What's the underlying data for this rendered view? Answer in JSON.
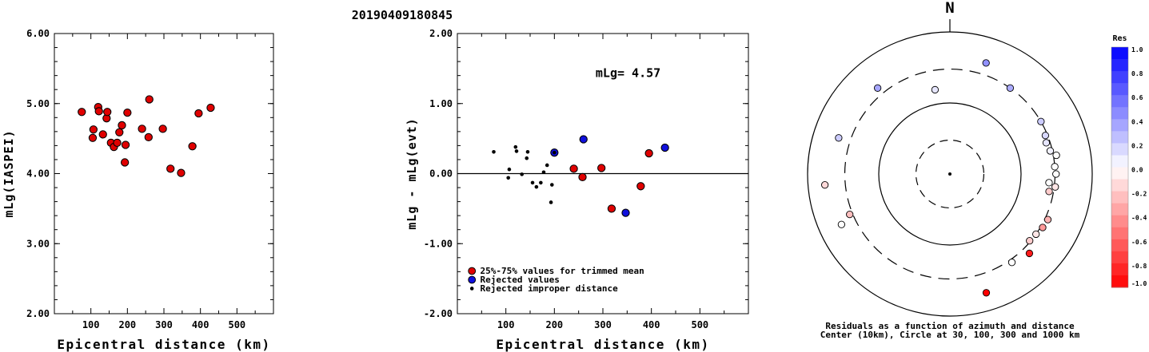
{
  "title": "20190409180845",
  "chart_data": [
    {
      "type": "scatter",
      "xlabel": "Epicentral distance (km)",
      "ylabel": "mLg(IASPEI)",
      "xlim": [
        0,
        600
      ],
      "ylim": [
        2.0,
        6.0
      ],
      "xticks": [
        "100",
        "200",
        "300",
        "400",
        "500"
      ],
      "yticks": [
        "2.00",
        "3.00",
        "4.00",
        "5.00",
        "6.00"
      ],
      "series": [
        {
          "color": "#e00000",
          "points": [
            [
              75,
              4.88
            ],
            [
              105,
              4.51
            ],
            [
              107,
              4.63
            ],
            [
              120,
              4.95
            ],
            [
              122,
              4.89
            ],
            [
              133,
              4.56
            ],
            [
              143,
              4.79
            ],
            [
              145,
              4.88
            ],
            [
              155,
              4.44
            ],
            [
              163,
              4.38
            ],
            [
              172,
              4.44
            ],
            [
              178,
              4.59
            ],
            [
              185,
              4.69
            ],
            [
              193,
              4.16
            ],
            [
              195,
              4.41
            ],
            [
              200,
              4.87
            ],
            [
              240,
              4.64
            ],
            [
              258,
              4.52
            ],
            [
              260,
              5.06
            ],
            [
              297,
              4.64
            ],
            [
              318,
              4.07
            ],
            [
              347,
              4.01
            ],
            [
              378,
              4.39
            ],
            [
              395,
              4.86
            ],
            [
              428,
              4.94
            ]
          ]
        }
      ]
    },
    {
      "type": "scatter",
      "annotation": "mLg= 4.57",
      "xlabel": "Epicentral distance (km)",
      "ylabel": "mLg - mLg(evt)",
      "xlim": [
        0,
        600
      ],
      "ylim": [
        -2.0,
        2.0
      ],
      "xticks": [
        "100",
        "200",
        "300",
        "400",
        "500"
      ],
      "yticks": [
        "-2.00",
        "-1.00",
        "0.00",
        "1.00",
        "2.00"
      ],
      "reference_line": 0.0,
      "legend": {
        "placement": "bottom-left",
        "entries": [
          {
            "label": "25%-75% values for trimmed mean",
            "color": "#e00000"
          },
          {
            "label": "Rejected values",
            "color": "#1010dd"
          },
          {
            "label": "Rejected improper distance",
            "color": "#000000"
          }
        ]
      },
      "series": [
        {
          "name": "25%-75% values for trimmed mean",
          "color": "#e00000",
          "points": [
            [
              240,
              0.07
            ],
            [
              258,
              -0.05
            ],
            [
              297,
              0.08
            ],
            [
              318,
              -0.5
            ],
            [
              378,
              -0.18
            ],
            [
              395,
              0.29
            ]
          ]
        },
        {
          "name": "Rejected values",
          "color": "#1010dd",
          "points": [
            [
              200,
              0.3
            ],
            [
              260,
              0.49
            ],
            [
              347,
              -0.56
            ],
            [
              428,
              0.37
            ]
          ]
        },
        {
          "name": "Rejected improper distance",
          "color": "#000000",
          "points": [
            [
              75,
              0.31
            ],
            [
              105,
              -0.06
            ],
            [
              107,
              0.06
            ],
            [
              120,
              0.38
            ],
            [
              122,
              0.32
            ],
            [
              133,
              -0.01
            ],
            [
              143,
              0.22
            ],
            [
              145,
              0.31
            ],
            [
              155,
              -0.13
            ],
            [
              163,
              -0.19
            ],
            [
              172,
              -0.13
            ],
            [
              178,
              0.02
            ],
            [
              185,
              0.12
            ],
            [
              193,
              -0.41
            ],
            [
              195,
              -0.16
            ],
            [
              200,
              0.3
            ]
          ]
        }
      ]
    },
    {
      "type": "polar-scatter",
      "north_label": "N",
      "caption_line1": "Residuals as a function of azimuth and distance",
      "caption_line2": "Center (10km), Circle at 30, 100, 300 and 1000 km",
      "colorbar": {
        "title": "Res",
        "ticks": [
          "1.0",
          "0.8",
          "0.6",
          "0.4",
          "0.2",
          "0.0",
          "-0.2",
          "-0.4",
          "-0.6",
          "-0.8",
          "-1.0"
        ],
        "range": [
          -1.0,
          1.0
        ]
      },
      "points_note": "azimuth in degrees clockwise from north, distance in km, residual",
      "points": [
        [
          320,
          380,
          0.35
        ],
        [
          350,
          160,
          0.1
        ],
        [
          18,
          440,
          0.43
        ],
        [
          35,
          300,
          0.33
        ],
        [
          288,
          440,
          0.2
        ],
        [
          265,
          580,
          -0.15
        ],
        [
          245,
          480,
          0.0
        ],
        [
          248,
          330,
          -0.25
        ],
        [
          60,
          300,
          0.2
        ],
        [
          68,
          280,
          0.15
        ],
        [
          72,
          265,
          0.1
        ],
        [
          77,
          280,
          0.05
        ],
        [
          80,
          330,
          0.0
        ],
        [
          86,
          300,
          0.0
        ],
        [
          90,
          310,
          0.0
        ],
        [
          95,
          250,
          0.0
        ],
        [
          100,
          260,
          -0.2
        ],
        [
          115,
          330,
          -0.3
        ],
        [
          120,
          320,
          -0.4
        ],
        [
          125,
          300,
          -0.1
        ],
        [
          130,
          290,
          -0.2
        ],
        [
          135,
          380,
          -0.9
        ],
        [
          145,
          330,
          0.0
        ],
        [
          163,
          560,
          -1.0
        ],
        [
          97,
          310,
          -0.1
        ]
      ]
    }
  ]
}
